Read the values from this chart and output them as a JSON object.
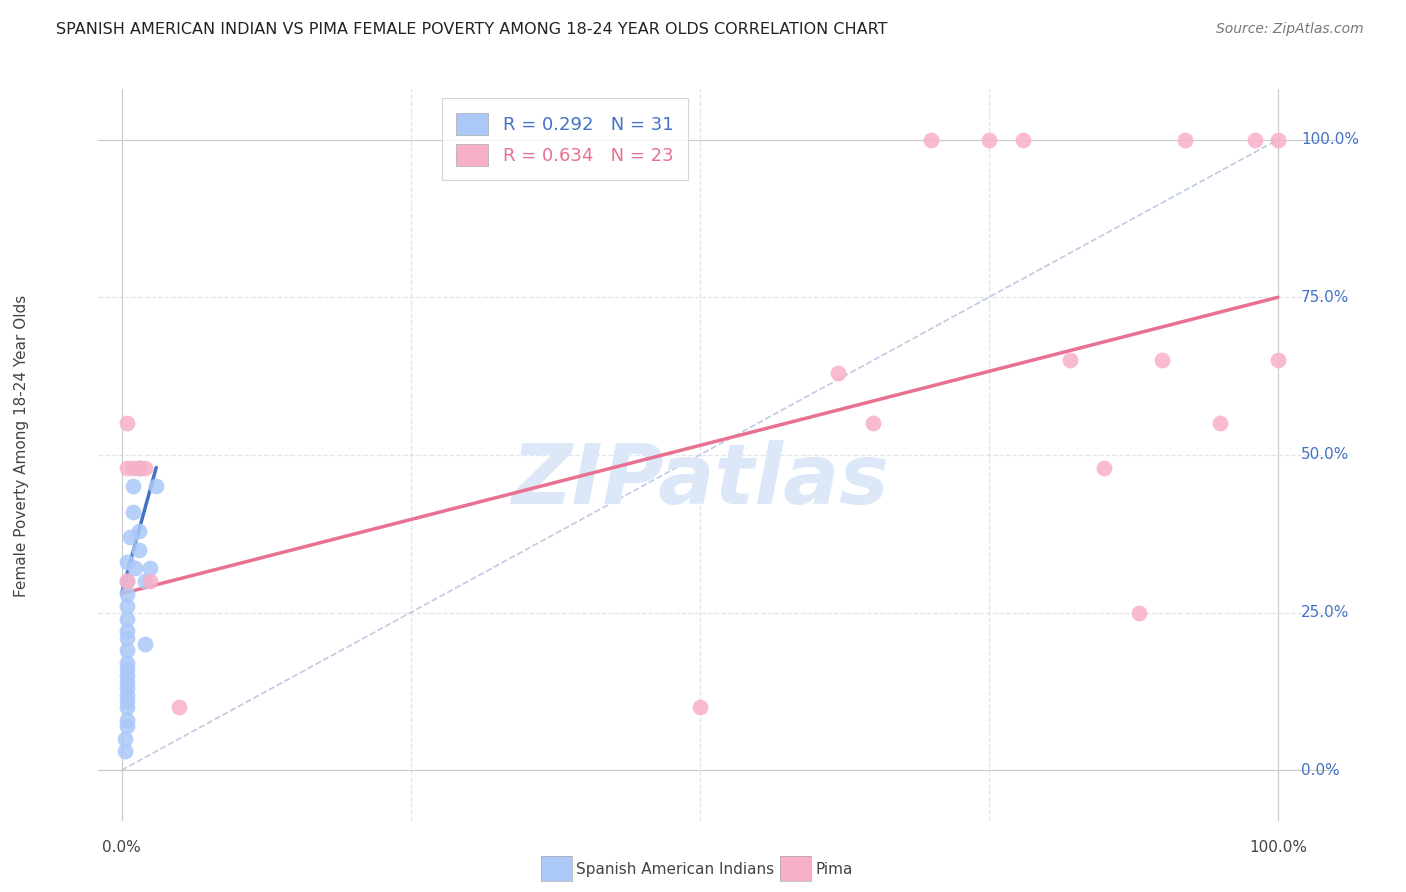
{
  "title": "SPANISH AMERICAN INDIAN VS PIMA FEMALE POVERTY AMONG 18-24 YEAR OLDS CORRELATION CHART",
  "source": "Source: ZipAtlas.com",
  "ylabel": "Female Poverty Among 18-24 Year Olds",
  "legend_label1": "Spanish American Indians",
  "legend_label2": "Pima",
  "blue_R": "0.292",
  "blue_N": "31",
  "pink_R": "0.634",
  "pink_N": "23",
  "blue_scatter_x": [
    0.3,
    0.3,
    0.5,
    0.5,
    0.5,
    0.5,
    0.5,
    0.5,
    0.5,
    0.5,
    0.5,
    0.5,
    0.5,
    0.5,
    0.5,
    0.5,
    0.5,
    0.5,
    0.5,
    0.5,
    0.7,
    1.0,
    1.0,
    1.2,
    1.5,
    1.5,
    1.5,
    2.0,
    2.0,
    2.5,
    3.0
  ],
  "blue_scatter_y": [
    3.0,
    5.0,
    7.0,
    8.0,
    10.0,
    11.0,
    12.0,
    13.0,
    14.0,
    15.0,
    16.0,
    17.0,
    19.0,
    21.0,
    22.0,
    24.0,
    26.0,
    28.0,
    30.0,
    33.0,
    37.0,
    41.0,
    45.0,
    32.0,
    38.0,
    35.0,
    48.0,
    30.0,
    20.0,
    32.0,
    45.0
  ],
  "pink_scatter_x": [
    0.5,
    0.5,
    0.5,
    1.0,
    1.5,
    2.0,
    2.5,
    5.0,
    50.0,
    62.0,
    65.0,
    70.0,
    75.0,
    78.0,
    82.0,
    85.0,
    88.0,
    90.0,
    92.0,
    95.0,
    98.0,
    100.0,
    100.0
  ],
  "pink_scatter_y": [
    55.0,
    48.0,
    30.0,
    48.0,
    48.0,
    48.0,
    30.0,
    10.0,
    10.0,
    63.0,
    55.0,
    100.0,
    100.0,
    100.0,
    65.0,
    48.0,
    25.0,
    65.0,
    100.0,
    55.0,
    100.0,
    100.0,
    65.0
  ],
  "blue_line_x": [
    0.0,
    3.0
  ],
  "blue_line_y": [
    28.0,
    48.0
  ],
  "pink_line_x": [
    0.0,
    100.0
  ],
  "pink_line_y": [
    28.0,
    75.0
  ],
  "blue_line_color": "#4472c4",
  "pink_line_color": "#e87090",
  "dashed_line_color": "#b8c4e0",
  "scatter_blue_color": "#aac8f8",
  "scatter_pink_color": "#f8b0c8",
  "watermark_text": "ZIPatlas",
  "watermark_color": "#dce8f8",
  "bg_color": "#ffffff",
  "grid_color": "#e0e4ec",
  "ytick_values": [
    0.0,
    25.0,
    50.0,
    75.0,
    100.0
  ],
  "ytick_labels": [
    "0.0%",
    "25.0%",
    "50.0%",
    "75.0%",
    "100.0%"
  ],
  "yright_color": "#4472c4",
  "xlim": [
    -2,
    105
  ],
  "ylim": [
    -8,
    108
  ]
}
